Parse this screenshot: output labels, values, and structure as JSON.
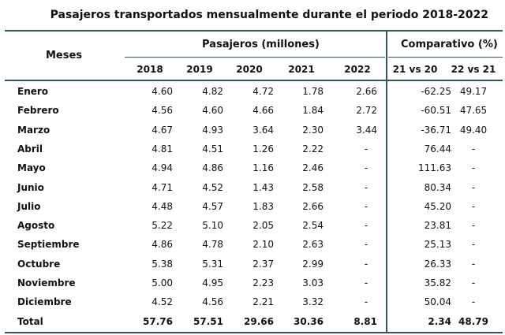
{
  "title": "Pasajeros transportados mensualmente durante el periodo 2018-2022",
  "header": {
    "meses": "Meses",
    "group_pasajeros": "Pasajeros (millones)",
    "group_comparativo": "Comparativo (%)",
    "years": [
      "2018",
      "2019",
      "2020",
      "2021",
      "2022"
    ],
    "comparisons": [
      "21 vs 20",
      "22 vs 21"
    ]
  },
  "rows": [
    {
      "month": "Enero",
      "values": [
        "4.60",
        "4.82",
        "4.72",
        "1.78",
        "2.66"
      ],
      "comp": [
        "-62.25",
        "49.17"
      ]
    },
    {
      "month": "Febrero",
      "values": [
        "4.56",
        "4.60",
        "4.66",
        "1.84",
        "2.72"
      ],
      "comp": [
        "-60.51",
        "47.65"
      ]
    },
    {
      "month": "Marzo",
      "values": [
        "4.67",
        "4.93",
        "3.64",
        "2.30",
        "3.44"
      ],
      "comp": [
        "-36.71",
        "49.40"
      ]
    },
    {
      "month": "Abril",
      "values": [
        "4.81",
        "4.51",
        "1.26",
        "2.22",
        "-"
      ],
      "comp": [
        "76.44",
        "-"
      ]
    },
    {
      "month": "Mayo",
      "values": [
        "4.94",
        "4.86",
        "1.16",
        "2.46",
        "-"
      ],
      "comp": [
        "111.63",
        "-"
      ]
    },
    {
      "month": "Junio",
      "values": [
        "4.71",
        "4.52",
        "1.43",
        "2.58",
        "-"
      ],
      "comp": [
        "80.34",
        "-"
      ]
    },
    {
      "month": "Julio",
      "values": [
        "4.48",
        "4.57",
        "1.83",
        "2.66",
        "-"
      ],
      "comp": [
        "45.20",
        "-"
      ]
    },
    {
      "month": "Agosto",
      "values": [
        "5.22",
        "5.10",
        "2.05",
        "2.54",
        "-"
      ],
      "comp": [
        "23.81",
        "-"
      ]
    },
    {
      "month": "Septiembre",
      "values": [
        "4.86",
        "4.78",
        "2.10",
        "2.63",
        "-"
      ],
      "comp": [
        "25.13",
        "-"
      ]
    },
    {
      "month": "Octubre",
      "values": [
        "5.38",
        "5.31",
        "2.37",
        "2.99",
        "-"
      ],
      "comp": [
        "26.33",
        "-"
      ]
    },
    {
      "month": "Noviembre",
      "values": [
        "5.00",
        "4.95",
        "2.23",
        "3.03",
        "-"
      ],
      "comp": [
        "35.82",
        "-"
      ]
    },
    {
      "month": "Diciembre",
      "values": [
        "4.52",
        "4.56",
        "2.21",
        "3.32",
        "-"
      ],
      "comp": [
        "50.04",
        "-"
      ]
    }
  ],
  "total": {
    "month": "Total",
    "values": [
      "57.76",
      "57.51",
      "29.66",
      "30.36",
      "8.81"
    ],
    "comp": [
      "2.34",
      "48.79"
    ]
  },
  "colors": {
    "rule": "#2f5d50"
  }
}
